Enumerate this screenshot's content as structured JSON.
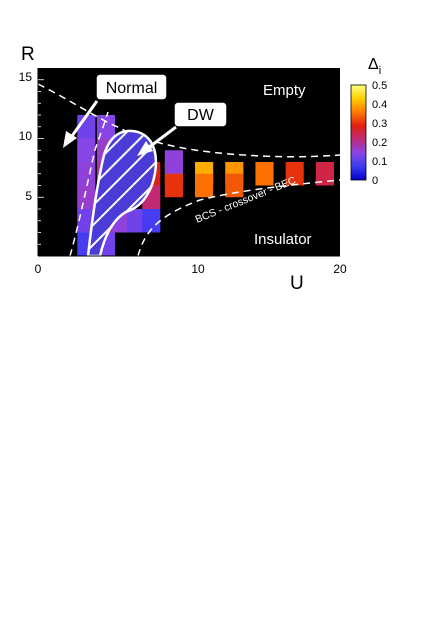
{
  "chart_data": {
    "type": "heatmap",
    "xlabel": "U",
    "ylabel": "R",
    "xlim": [
      0,
      20
    ],
    "ylim": [
      0,
      16
    ],
    "x_ticks": [
      "0",
      "10",
      "20"
    ],
    "y_ticks": [
      "5",
      "10",
      "15"
    ],
    "colorbar": {
      "label": "Δ",
      "label_sub": "i",
      "range": [
        0,
        0.5
      ],
      "ticks": [
        "0.5",
        "0.4",
        "0.3",
        "0.2",
        "0.1",
        "0"
      ],
      "stops": [
        "#0000c8",
        "#3c3cf0",
        "#8a45e6",
        "#c02a7a",
        "#e02010",
        "#ff7a00",
        "#ffd000",
        "#ffff80"
      ]
    },
    "background_color": "#000000",
    "region_labels": {
      "normal": "Normal",
      "dw": "DW",
      "empty": "Empty",
      "insulator": "Insulator",
      "crossover": "BCS - crossover - BEC"
    },
    "cells": [
      {
        "u": 3.2,
        "r": 11,
        "v": 0.12
      },
      {
        "u": 3.2,
        "r": 9,
        "v": 0.14
      },
      {
        "u": 3.2,
        "r": 7,
        "v": 0.15
      },
      {
        "u": 3.2,
        "r": 5,
        "v": 0.16
      },
      {
        "u": 3.2,
        "r": 3,
        "v": 0.12
      },
      {
        "u": 3.2,
        "r": 1,
        "v": 0.08
      },
      {
        "u": 4.5,
        "r": 11,
        "v": 0.14
      },
      {
        "u": 4.5,
        "r": 9,
        "v": 0.16
      },
      {
        "u": 4.5,
        "r": 7,
        "v": 0.18
      },
      {
        "u": 4.5,
        "r": 5,
        "v": 0.2
      },
      {
        "u": 4.5,
        "r": 3,
        "v": 0.22
      },
      {
        "u": 4.5,
        "r": 1,
        "v": 0.12
      },
      {
        "u": 5.5,
        "r": 9,
        "v": 0.18
      },
      {
        "u": 5.5,
        "r": 7,
        "v": 0.22
      },
      {
        "u": 5.5,
        "r": 5,
        "v": 0.22
      },
      {
        "u": 5.5,
        "r": 3,
        "v": 0.15
      },
      {
        "u": 6.5,
        "r": 8,
        "v": 0.2
      },
      {
        "u": 6.5,
        "r": 6,
        "v": 0.25
      },
      {
        "u": 6.5,
        "r": 3,
        "v": 0.12
      },
      {
        "u": 7.5,
        "r": 7,
        "v": 0.28
      },
      {
        "u": 7.5,
        "r": 5,
        "v": 0.22
      },
      {
        "u": 7.5,
        "r": 3,
        "v": 0.08
      },
      {
        "u": 9,
        "r": 7,
        "v": 0.35
      },
      {
        "u": 9,
        "r": 6,
        "v": 0.3
      },
      {
        "u": 9,
        "r": 8,
        "v": 0.15
      },
      {
        "u": 11,
        "r": 7,
        "v": 0.4
      },
      {
        "u": 11,
        "r": 6,
        "v": 0.35
      },
      {
        "u": 13,
        "r": 7,
        "v": 0.38
      },
      {
        "u": 13,
        "r": 6,
        "v": 0.33
      },
      {
        "u": 15,
        "r": 7,
        "v": 0.35
      },
      {
        "u": 17,
        "r": 7,
        "v": 0.3
      },
      {
        "u": 19,
        "r": 7,
        "v": 0.25
      }
    ]
  }
}
